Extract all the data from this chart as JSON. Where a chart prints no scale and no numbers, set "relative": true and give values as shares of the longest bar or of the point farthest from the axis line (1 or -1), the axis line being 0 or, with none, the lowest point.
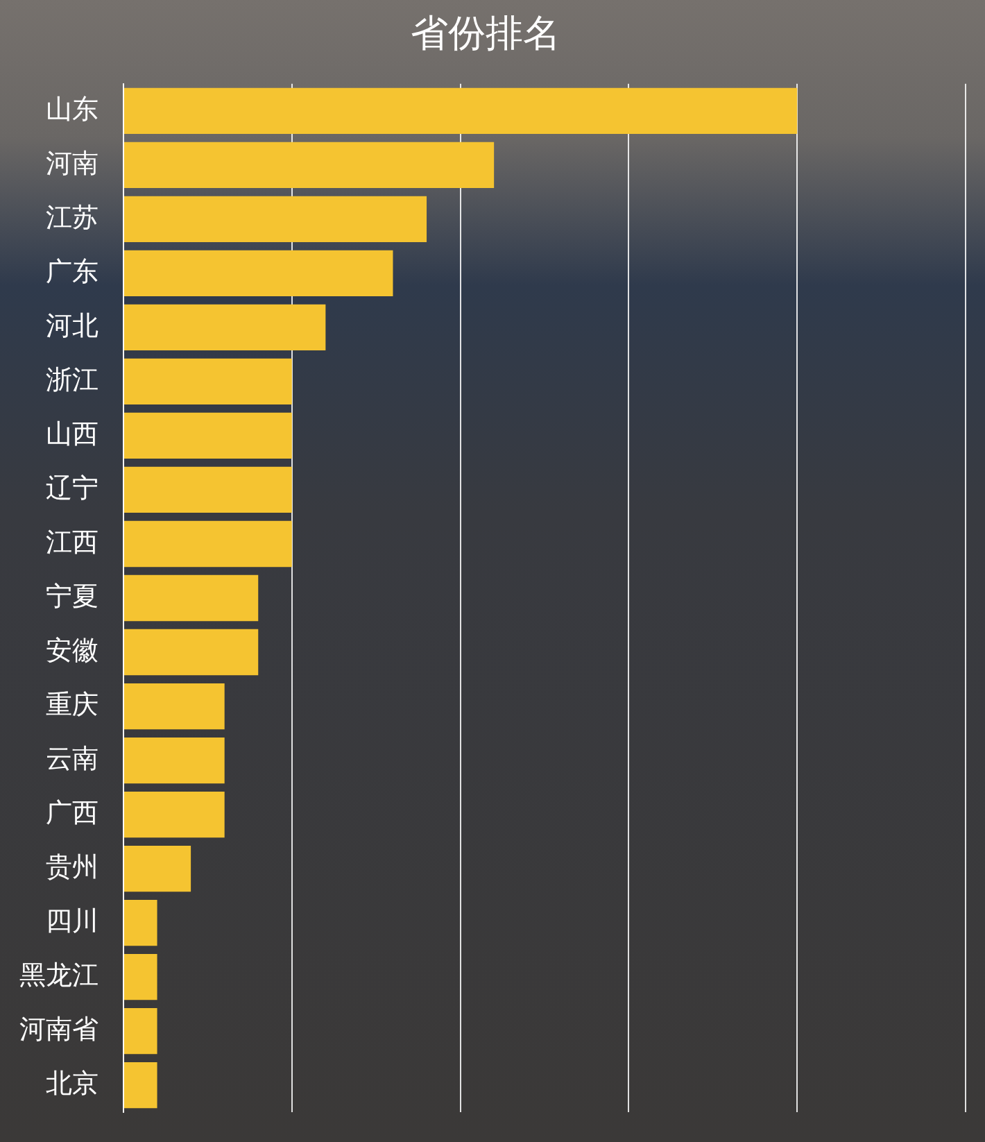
{
  "chart_data": {
    "type": "bar",
    "orientation": "horizontal",
    "relative": true,
    "title": "省份排名",
    "categories": [
      "山东",
      "河南",
      "江苏",
      "广东",
      "河北",
      "浙江",
      "山西",
      "辽宁",
      "江西",
      "宁夏",
      "安徽",
      "重庆",
      "云南",
      "广西",
      "贵州",
      "四川",
      "黑龙江",
      "河南省",
      "北京"
    ],
    "values": [
      1,
      0.55,
      0.45,
      0.4,
      0.3,
      0.25,
      0.25,
      0.25,
      0.25,
      0.2,
      0.2,
      0.15,
      0.15,
      0.15,
      0.1,
      0.05,
      0.05,
      0.05,
      0.05
    ],
    "color": "#f5c431",
    "grid": "x",
    "legend": false
  }
}
